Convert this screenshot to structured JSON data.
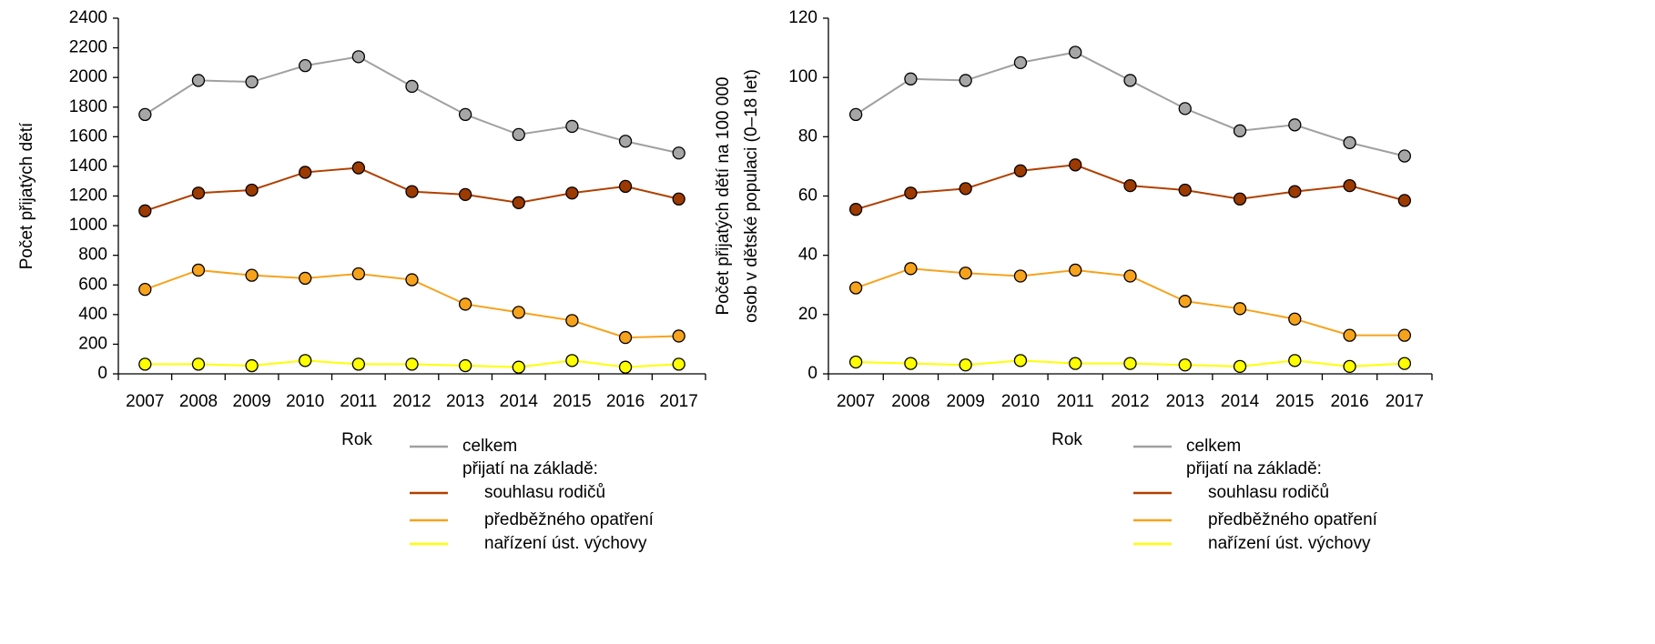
{
  "chart_data": [
    {
      "type": "line",
      "ylabel": [
        "Počet přijatých dětí"
      ],
      "xlabel": "Rok",
      "categories": [
        "2007",
        "2008",
        "2009",
        "2010",
        "2011",
        "2012",
        "2013",
        "2014",
        "2015",
        "2016",
        "2017"
      ],
      "ylim": [
        0,
        2400
      ],
      "yticks": [
        0,
        200,
        400,
        600,
        800,
        1000,
        1200,
        1400,
        1600,
        1800,
        2000,
        2200,
        2400
      ],
      "legend_group_label": "přijatí na základě:",
      "series": [
        {
          "name": "celkem",
          "color": "#a0a0a0",
          "marker_color": "#a6a6a6",
          "values": [
            1750,
            1980,
            1970,
            2080,
            2140,
            1940,
            1750,
            1615,
            1670,
            1570,
            1490
          ]
        },
        {
          "name": "souhlasu rodičů",
          "color": "#b04000",
          "marker_color": "#9c3a00",
          "values": [
            1100,
            1220,
            1240,
            1360,
            1390,
            1230,
            1210,
            1155,
            1220,
            1265,
            1180
          ]
        },
        {
          "name": "předběžného opatření",
          "color": "#f7a21b",
          "marker_color": "#f7a21b",
          "values": [
            570,
            700,
            665,
            645,
            675,
            635,
            470,
            415,
            360,
            245,
            255
          ]
        },
        {
          "name": "nařízení úst. výchovy",
          "color": "#ffff00",
          "marker_color": "#ffff00",
          "values": [
            65,
            65,
            55,
            90,
            65,
            65,
            55,
            45,
            90,
            45,
            65
          ]
        }
      ]
    },
    {
      "type": "line",
      "ylabel": [
        "Počet přijatých  dětí na 100 000",
        "osob v dětské populaci (0–18 let)"
      ],
      "xlabel": "Rok",
      "categories": [
        "2007",
        "2008",
        "2009",
        "2010",
        "2011",
        "2012",
        "2013",
        "2014",
        "2015",
        "2016",
        "2017"
      ],
      "ylim": [
        0,
        120
      ],
      "yticks": [
        0,
        20,
        40,
        60,
        80,
        100,
        120
      ],
      "legend_group_label": "přijatí na základě:",
      "series": [
        {
          "name": "celkem",
          "color": "#a0a0a0",
          "marker_color": "#a6a6a6",
          "values": [
            87.5,
            99.5,
            99,
            105,
            108.5,
            99,
            89.5,
            82,
            84,
            78,
            73.5
          ]
        },
        {
          "name": "souhlasu rodičů",
          "color": "#b04000",
          "marker_color": "#9c3a00",
          "values": [
            55.5,
            61,
            62.5,
            68.5,
            70.5,
            63.5,
            62,
            59,
            61.5,
            63.5,
            58.5
          ]
        },
        {
          "name": "předběžného opatření",
          "color": "#f7a21b",
          "marker_color": "#f7a21b",
          "values": [
            29,
            35.5,
            34,
            33,
            35,
            33,
            24.5,
            22,
            18.5,
            13,
            13
          ]
        },
        {
          "name": "nařízení úst. výchovy",
          "color": "#ffff00",
          "marker_color": "#ffff00",
          "values": [
            4,
            3.5,
            3,
            4.5,
            3.5,
            3.5,
            3,
            2.5,
            4.5,
            2.5,
            3.5
          ]
        }
      ]
    }
  ]
}
